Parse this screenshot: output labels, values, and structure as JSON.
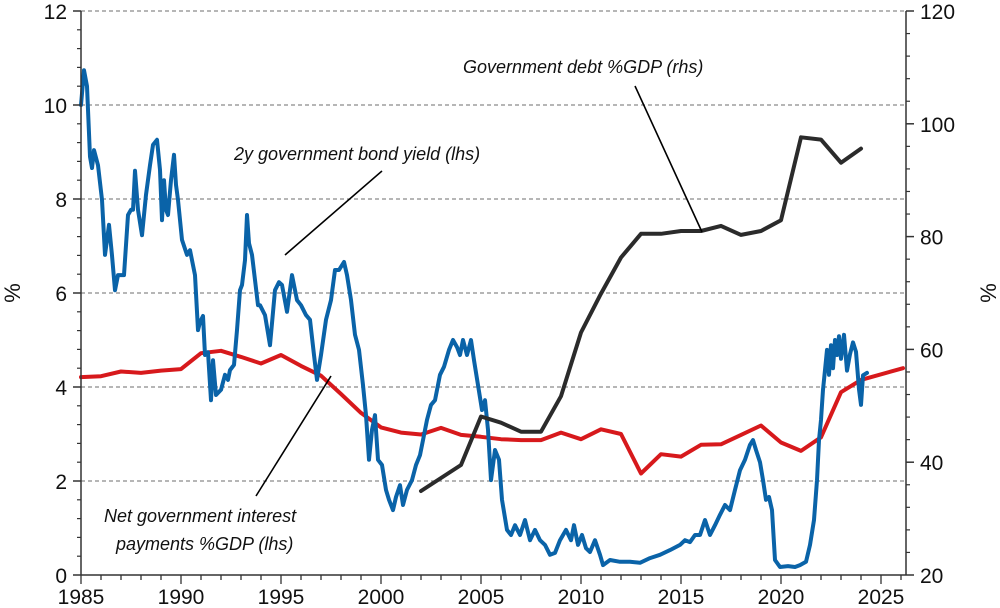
{
  "chart_data": {
    "type": "line",
    "title": "",
    "xlabel": "",
    "ylabel_left": "%",
    "ylabel_right": "%",
    "xlim": [
      1985,
      2026.25
    ],
    "ylim_left": [
      0,
      12
    ],
    "ylim_right": [
      20,
      120
    ],
    "x_ticks": [
      "1985",
      "1990",
      "1995",
      "2000",
      "2005",
      "2010",
      "2015",
      "2020",
      "2025"
    ],
    "x_tick_values": [
      1985,
      1990,
      1995,
      2000,
      2005,
      2010,
      2015,
      2020,
      2025
    ],
    "y_ticks_left": [
      "0",
      "2",
      "4",
      "6",
      "8",
      "10",
      "12"
    ],
    "y_tick_values_left": [
      0,
      2,
      4,
      6,
      8,
      10,
      12
    ],
    "y_ticks_right": [
      "20",
      "40",
      "60",
      "80",
      "100",
      "120"
    ],
    "y_tick_values_right": [
      20,
      40,
      60,
      80,
      100,
      120
    ],
    "grid": "horizontal dashed",
    "series": [
      {
        "name": "2y government bond yield (lhs)",
        "axis": "left",
        "color": "#0a63a8",
        "points": [
          [
            1985.0,
            10.0
          ],
          [
            1985.15,
            10.74
          ],
          [
            1985.3,
            10.4
          ],
          [
            1985.45,
            8.9
          ],
          [
            1985.55,
            8.66
          ],
          [
            1985.65,
            9.04
          ],
          [
            1985.85,
            8.72
          ],
          [
            1986.05,
            7.98
          ],
          [
            1986.2,
            6.81
          ],
          [
            1986.4,
            7.45
          ],
          [
            1986.55,
            6.8
          ],
          [
            1986.7,
            6.06
          ],
          [
            1986.85,
            6.38
          ],
          [
            1987.15,
            6.38
          ],
          [
            1987.35,
            7.66
          ],
          [
            1987.5,
            7.77
          ],
          [
            1987.6,
            7.77
          ],
          [
            1987.7,
            8.6
          ],
          [
            1987.85,
            7.77
          ],
          [
            1988.05,
            7.23
          ],
          [
            1988.25,
            8.09
          ],
          [
            1988.45,
            8.72
          ],
          [
            1988.6,
            9.15
          ],
          [
            1988.8,
            9.26
          ],
          [
            1988.95,
            8.62
          ],
          [
            1989.05,
            7.55
          ],
          [
            1989.15,
            8.4
          ],
          [
            1989.25,
            7.77
          ],
          [
            1989.35,
            7.66
          ],
          [
            1989.5,
            8.4
          ],
          [
            1989.65,
            8.94
          ],
          [
            1989.75,
            8.3
          ],
          [
            1989.85,
            7.98
          ],
          [
            1990.05,
            7.13
          ],
          [
            1990.3,
            6.81
          ],
          [
            1990.45,
            6.91
          ],
          [
            1990.7,
            6.38
          ],
          [
            1990.85,
            5.21
          ],
          [
            1990.95,
            5.38
          ],
          [
            1991.1,
            5.51
          ],
          [
            1991.2,
            4.68
          ],
          [
            1991.35,
            4.74
          ],
          [
            1991.5,
            3.72
          ],
          [
            1991.6,
            4.57
          ],
          [
            1991.75,
            3.83
          ],
          [
            1992.0,
            3.94
          ],
          [
            1992.2,
            4.26
          ],
          [
            1992.35,
            4.15
          ],
          [
            1992.45,
            4.36
          ],
          [
            1992.65,
            4.47
          ],
          [
            1992.8,
            5.21
          ],
          [
            1992.95,
            6.06
          ],
          [
            1993.05,
            6.17
          ],
          [
            1993.2,
            6.7
          ],
          [
            1993.3,
            7.66
          ],
          [
            1993.4,
            7.06
          ],
          [
            1993.55,
            6.81
          ],
          [
            1993.85,
            5.74
          ],
          [
            1993.95,
            5.74
          ],
          [
            1994.2,
            5.53
          ],
          [
            1994.45,
            4.89
          ],
          [
            1994.7,
            6.06
          ],
          [
            1994.9,
            6.23
          ],
          [
            1995.05,
            6.17
          ],
          [
            1995.3,
            5.6
          ],
          [
            1995.55,
            6.38
          ],
          [
            1995.8,
            5.85
          ],
          [
            1996.0,
            5.74
          ],
          [
            1996.25,
            5.53
          ],
          [
            1996.45,
            5.43
          ],
          [
            1996.65,
            4.68
          ],
          [
            1996.8,
            4.15
          ],
          [
            1997.0,
            4.68
          ],
          [
            1997.25,
            5.43
          ],
          [
            1997.5,
            5.85
          ],
          [
            1997.7,
            6.49
          ],
          [
            1997.9,
            6.49
          ],
          [
            1998.15,
            6.66
          ],
          [
            1998.3,
            6.38
          ],
          [
            1998.5,
            5.85
          ],
          [
            1998.7,
            5.11
          ],
          [
            1998.9,
            4.79
          ],
          [
            1999.1,
            4.04
          ],
          [
            1999.25,
            3.4
          ],
          [
            1999.4,
            2.45
          ],
          [
            1999.55,
            3.09
          ],
          [
            1999.7,
            3.4
          ],
          [
            1999.85,
            2.45
          ],
          [
            2000.05,
            2.34
          ],
          [
            2000.25,
            1.81
          ],
          [
            2000.4,
            1.6
          ],
          [
            2000.6,
            1.38
          ],
          [
            2000.75,
            1.66
          ],
          [
            2000.95,
            1.91
          ],
          [
            2001.1,
            1.49
          ],
          [
            2001.3,
            1.81
          ],
          [
            2001.55,
            2.02
          ],
          [
            2001.75,
            2.34
          ],
          [
            2001.95,
            2.55
          ],
          [
            2002.1,
            2.87
          ],
          [
            2002.3,
            3.3
          ],
          [
            2002.5,
            3.62
          ],
          [
            2002.7,
            3.72
          ],
          [
            2002.95,
            4.26
          ],
          [
            2003.15,
            4.43
          ],
          [
            2003.4,
            4.79
          ],
          [
            2003.6,
            5.0
          ],
          [
            2003.8,
            4.85
          ],
          [
            2003.95,
            4.68
          ],
          [
            2004.1,
            5.0
          ],
          [
            2004.3,
            4.68
          ],
          [
            2004.5,
            5.0
          ],
          [
            2004.65,
            4.57
          ],
          [
            2004.85,
            4.04
          ],
          [
            2005.05,
            3.51
          ],
          [
            2005.2,
            3.72
          ],
          [
            2005.35,
            3.09
          ],
          [
            2005.5,
            2.02
          ],
          [
            2005.7,
            2.66
          ],
          [
            2005.9,
            2.45
          ],
          [
            2006.05,
            1.6
          ],
          [
            2006.3,
            0.96
          ],
          [
            2006.5,
            0.85
          ],
          [
            2006.7,
            1.06
          ],
          [
            2006.95,
            0.85
          ],
          [
            2007.2,
            1.17
          ],
          [
            2007.45,
            0.74
          ],
          [
            2007.7,
            0.96
          ],
          [
            2007.95,
            0.74
          ],
          [
            2008.2,
            0.64
          ],
          [
            2008.45,
            0.43
          ],
          [
            2008.7,
            0.47
          ],
          [
            2008.95,
            0.74
          ],
          [
            2009.25,
            0.96
          ],
          [
            2009.5,
            0.74
          ],
          [
            2009.65,
            1.06
          ],
          [
            2009.85,
            0.64
          ],
          [
            2010.05,
            0.85
          ],
          [
            2010.25,
            0.57
          ],
          [
            2010.45,
            0.49
          ],
          [
            2010.7,
            0.74
          ],
          [
            2010.95,
            0.43
          ],
          [
            2011.1,
            0.21
          ],
          [
            2011.45,
            0.32
          ],
          [
            2011.95,
            0.28
          ],
          [
            2012.45,
            0.28
          ],
          [
            2012.95,
            0.26
          ],
          [
            2013.45,
            0.36
          ],
          [
            2013.95,
            0.43
          ],
          [
            2014.45,
            0.53
          ],
          [
            2014.95,
            0.64
          ],
          [
            2015.2,
            0.74
          ],
          [
            2015.45,
            0.7
          ],
          [
            2015.7,
            0.85
          ],
          [
            2015.95,
            0.85
          ],
          [
            2016.2,
            1.17
          ],
          [
            2016.45,
            0.85
          ],
          [
            2016.7,
            1.06
          ],
          [
            2016.95,
            1.28
          ],
          [
            2017.2,
            1.49
          ],
          [
            2017.45,
            1.38
          ],
          [
            2017.7,
            1.81
          ],
          [
            2017.95,
            2.23
          ],
          [
            2018.2,
            2.45
          ],
          [
            2018.45,
            2.77
          ],
          [
            2018.6,
            2.87
          ],
          [
            2018.75,
            2.66
          ],
          [
            2018.95,
            2.4
          ],
          [
            2019.1,
            2.02
          ],
          [
            2019.25,
            1.6
          ],
          [
            2019.4,
            1.66
          ],
          [
            2019.55,
            1.38
          ],
          [
            2019.7,
            0.32
          ],
          [
            2019.95,
            0.17
          ],
          [
            2020.35,
            0.19
          ],
          [
            2020.7,
            0.17
          ],
          [
            2020.95,
            0.21
          ],
          [
            2021.25,
            0.28
          ],
          [
            2021.45,
            0.64
          ],
          [
            2021.65,
            1.17
          ],
          [
            2021.8,
            2.02
          ],
          [
            2021.9,
            2.87
          ],
          [
            2022.0,
            3.3
          ],
          [
            2022.1,
            3.94
          ],
          [
            2022.2,
            4.36
          ],
          [
            2022.3,
            4.79
          ],
          [
            2022.4,
            4.26
          ],
          [
            2022.5,
            4.89
          ],
          [
            2022.6,
            4.4
          ],
          [
            2022.7,
            5.0
          ],
          [
            2022.8,
            4.68
          ],
          [
            2022.9,
            5.08
          ],
          [
            2023.0,
            4.6
          ],
          [
            2023.15,
            5.11
          ],
          [
            2023.3,
            4.35
          ],
          [
            2023.45,
            4.7
          ],
          [
            2023.6,
            4.95
          ],
          [
            2023.75,
            4.75
          ],
          [
            2023.9,
            3.95
          ],
          [
            2024.0,
            3.62
          ],
          [
            2024.1,
            4.25
          ],
          [
            2024.3,
            4.3
          ]
        ]
      },
      {
        "name": "Net government interest payments %GDP (lhs)",
        "axis": "left",
        "color": "#d7191c",
        "points": [
          [
            1985.0,
            4.21
          ],
          [
            1986.0,
            4.23
          ],
          [
            1987.0,
            4.33
          ],
          [
            1988.0,
            4.3
          ],
          [
            1989.0,
            4.35
          ],
          [
            1990.0,
            4.38
          ],
          [
            1991.0,
            4.72
          ],
          [
            1992.0,
            4.77
          ],
          [
            1993.0,
            4.64
          ],
          [
            1994.0,
            4.5
          ],
          [
            1995.0,
            4.68
          ],
          [
            1996.0,
            4.45
          ],
          [
            1997.0,
            4.24
          ],
          [
            1998.0,
            3.85
          ],
          [
            1999.0,
            3.45
          ],
          [
            2000.0,
            3.14
          ],
          [
            2001.0,
            3.03
          ],
          [
            2002.0,
            2.99
          ],
          [
            2003.0,
            3.13
          ],
          [
            2004.0,
            2.98
          ],
          [
            2005.0,
            2.94
          ],
          [
            2006.0,
            2.89
          ],
          [
            2007.0,
            2.87
          ],
          [
            2008.0,
            2.87
          ],
          [
            2009.0,
            3.03
          ],
          [
            2010.0,
            2.89
          ],
          [
            2011.0,
            3.1
          ],
          [
            2012.0,
            3.0
          ],
          [
            2013.0,
            2.16
          ],
          [
            2014.0,
            2.57
          ],
          [
            2015.0,
            2.52
          ],
          [
            2016.0,
            2.77
          ],
          [
            2017.0,
            2.78
          ],
          [
            2018.0,
            2.98
          ],
          [
            2019.0,
            3.18
          ],
          [
            2020.0,
            2.82
          ],
          [
            2021.0,
            2.64
          ],
          [
            2022.0,
            2.93
          ],
          [
            2023.0,
            3.89
          ],
          [
            2024.0,
            4.15
          ],
          [
            2026.1,
            4.4
          ]
        ]
      },
      {
        "name": "Government debt %GDP (rhs)",
        "axis": "right",
        "color": "#2b2b2b",
        "points": [
          [
            2002.0,
            34.9
          ],
          [
            2004.0,
            39.5
          ],
          [
            2005.0,
            48.1
          ],
          [
            2006.0,
            47.0
          ],
          [
            2007.0,
            45.4
          ],
          [
            2008.0,
            45.4
          ],
          [
            2009.0,
            51.7
          ],
          [
            2010.0,
            63.0
          ],
          [
            2011.0,
            69.9
          ],
          [
            2012.0,
            76.3
          ],
          [
            2013.0,
            80.5
          ],
          [
            2014.0,
            80.5
          ],
          [
            2015.0,
            81.0
          ],
          [
            2016.0,
            81.0
          ],
          [
            2017.0,
            81.9
          ],
          [
            2018.0,
            80.3
          ],
          [
            2019.0,
            81.0
          ],
          [
            2020.0,
            82.9
          ],
          [
            2021.0,
            97.6
          ],
          [
            2022.0,
            97.2
          ],
          [
            2023.0,
            93.1
          ],
          [
            2024.0,
            95.6
          ]
        ]
      }
    ],
    "annotations": [
      {
        "text": "Government debt %GDP (rhs)",
        "points_to_series": 2,
        "target": [
          2016.0,
          81.0
        ]
      },
      {
        "text": "2y government bond yield (lhs)",
        "points_to_series": 0,
        "target": [
          1995.55,
          6.81
        ]
      },
      {
        "text_lines": [
          "Net government interest",
          "payments %GDP (lhs)"
        ],
        "points_to_series": 1,
        "target": [
          1997.0,
          4.24
        ]
      }
    ],
    "legend": "none (inline annotations)"
  }
}
